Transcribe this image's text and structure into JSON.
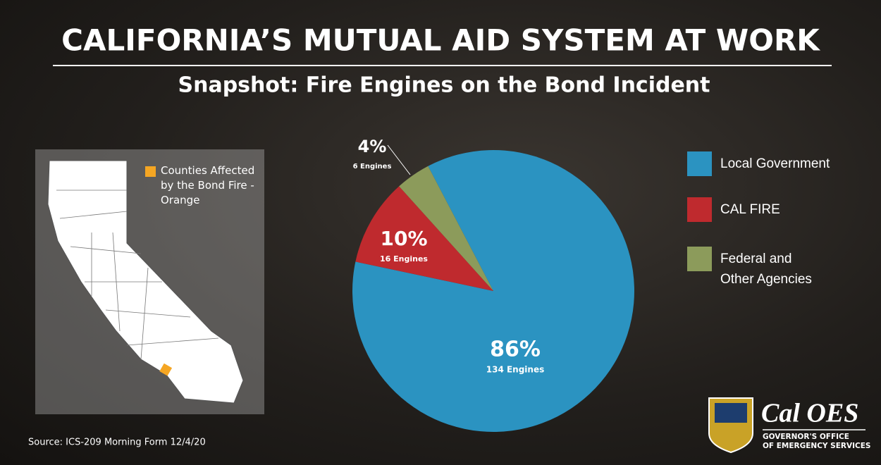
{
  "chart_data": {
    "type": "pie",
    "title": "CALIFORNIA’S MUTUAL AID SYSTEM AT WORK",
    "subtitle": "Snapshot: Fire Engines on the Bond Incident",
    "categories": [
      "Local Government",
      "CAL FIRE",
      "Federal and Other Agencies"
    ],
    "values": [
      86,
      10,
      4
    ],
    "value_labels": [
      "86%",
      "10%",
      "4%"
    ],
    "engine_labels": [
      "134 Engines",
      "16 Engines",
      "6 Engines"
    ],
    "colors": [
      "#2b93c1",
      "#bf2a2e",
      "#8c9b5b"
    ],
    "legend": "right"
  },
  "map": {
    "legend": "Counties Affected by the Bond Fire - Orange",
    "highlight_color": "#f5a623"
  },
  "source": "Source: ICS-209 Morning Form  12/4/20",
  "logo": {
    "name": "Cal OES",
    "line1": "GOVERNOR'S OFFICE",
    "line2": "OF EMERGENCY SERVICES"
  }
}
